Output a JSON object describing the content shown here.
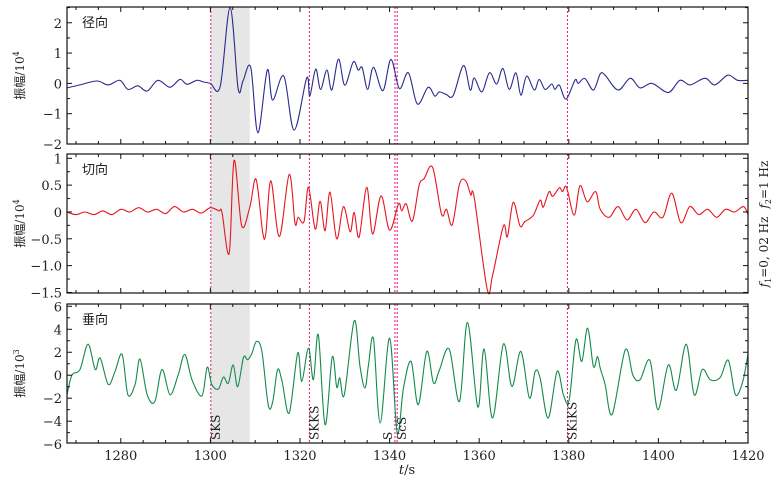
{
  "chart_data": {
    "type": "line",
    "xlabel_italic": "t",
    "xlabel_unit": "/s",
    "xlim": [
      1268,
      1420
    ],
    "x_ticks": [
      1280,
      1300,
      1320,
      1340,
      1360,
      1380,
      1400,
      1420
    ],
    "x_tick_labels": [
      "1280",
      "1300",
      "1320",
      "1340",
      "1360",
      "1380",
      "1400",
      "1420"
    ],
    "x_minor_step": 5,
    "filter_annotation": {
      "f1_label": "f",
      "f1_sub": "1",
      "f1_value": "=0, 02 Hz",
      "f2_label": "f",
      "f2_sub": "2",
      "f2_value": "=1 Hz"
    },
    "shaded_window": [
      1300.1,
      1308.8
    ],
    "phases": [
      {
        "name": "SKS",
        "t": 1300.1
      },
      {
        "name": "SKKS",
        "t": 1322.1
      },
      {
        "name": "S",
        "t": 1341.2
      },
      {
        "name": "ScS",
        "t": 1341.7
      },
      {
        "name": "SKiKS",
        "t": 1379.7
      }
    ],
    "panels": [
      {
        "title": "径向",
        "ylabel": "振幅/10",
        "ylabel_exp": "4",
        "color": "#2a2a8e",
        "ylim": [
          -2.0,
          2.52
        ],
        "y_ticks": [
          -2,
          -1,
          0,
          1,
          2
        ],
        "y_tick_labels": [
          "−2",
          "−1",
          "0",
          "1",
          "2"
        ],
        "y_minor_step": 0.5,
        "series": [
          [
            1268,
            -0.15
          ],
          [
            1270.9,
            -0.05
          ],
          [
            1274.7,
            0.08
          ],
          [
            1277.2,
            -0.05
          ],
          [
            1279.8,
            0.1
          ],
          [
            1281.6,
            -0.2
          ],
          [
            1283.8,
            -0.08
          ],
          [
            1285.9,
            -0.25
          ],
          [
            1288.3,
            0.1
          ],
          [
            1291,
            -0.13
          ],
          [
            1293.2,
            0.13
          ],
          [
            1294.8,
            -0.03
          ],
          [
            1297,
            0.1
          ],
          [
            1298.4,
            0.05
          ],
          [
            1300,
            0
          ],
          [
            1302.2,
            -0.1
          ],
          [
            1304.4,
            2.5
          ],
          [
            1306.2,
            -0.17
          ],
          [
            1307.3,
            0.09
          ],
          [
            1309,
            0.53
          ],
          [
            1310.6,
            -1.63
          ],
          [
            1312.7,
            0.44
          ],
          [
            1313.9,
            -0.55
          ],
          [
            1316.4,
            0.24
          ],
          [
            1318.7,
            -1.54
          ],
          [
            1321.5,
            0.18
          ],
          [
            1322.2,
            -0.42
          ],
          [
            1323.5,
            0.47
          ],
          [
            1324.6,
            -0.2
          ],
          [
            1326,
            0.44
          ],
          [
            1327.1,
            -0.22
          ],
          [
            1328.6,
            0.8
          ],
          [
            1330,
            -0.06
          ],
          [
            1331.9,
            0.71
          ],
          [
            1333,
            0.44
          ],
          [
            1333.9,
            0.52
          ],
          [
            1335.1,
            -0.2
          ],
          [
            1336.4,
            0.53
          ],
          [
            1338.5,
            -0.24
          ],
          [
            1340.3,
            0.79
          ],
          [
            1342.2,
            -0.17
          ],
          [
            1344.2,
            0.35
          ],
          [
            1346.2,
            -0.68
          ],
          [
            1348.6,
            -0.13
          ],
          [
            1350.1,
            -0.42
          ],
          [
            1351.1,
            -0.28
          ],
          [
            1352.6,
            -0.36
          ],
          [
            1354.2,
            -0.4
          ],
          [
            1356.5,
            0.59
          ],
          [
            1358,
            -0.22
          ],
          [
            1358.9,
            0.18
          ],
          [
            1360.6,
            -0.28
          ],
          [
            1362.3,
            0.35
          ],
          [
            1363.9,
            -0.02
          ],
          [
            1365.3,
            0.49
          ],
          [
            1366.7,
            -0.2
          ],
          [
            1368.2,
            0.35
          ],
          [
            1369.3,
            -0.39
          ],
          [
            1370.6,
            0.24
          ],
          [
            1372.3,
            -0.22
          ],
          [
            1373.4,
            0.13
          ],
          [
            1374.7,
            -0.2
          ],
          [
            1376.2,
            -0.02
          ],
          [
            1376.9,
            -0.2
          ],
          [
            1377.9,
            -0.06
          ],
          [
            1379.4,
            -0.52
          ],
          [
            1381.4,
            0.11
          ],
          [
            1382.1,
            0
          ],
          [
            1383.6,
            0.16
          ],
          [
            1385.5,
            -0.22
          ],
          [
            1387,
            0.31
          ],
          [
            1388.1,
            0.27
          ],
          [
            1391,
            -0.22
          ],
          [
            1393.7,
            0.17
          ],
          [
            1395.9,
            -0.15
          ],
          [
            1398.6,
            0
          ],
          [
            1402.2,
            -0.3
          ],
          [
            1404.8,
            0.1
          ],
          [
            1407.1,
            -0.05
          ],
          [
            1410.4,
            0.17
          ],
          [
            1412.6,
            -0.05
          ],
          [
            1415.5,
            0.27
          ],
          [
            1417.7,
            0.1
          ],
          [
            1420,
            0.1
          ]
        ]
      },
      {
        "title": "切向",
        "ylabel": "振幅/10",
        "ylabel_exp": "4",
        "color": "#e8141e",
        "ylim": [
          -1.51,
          1.08
        ],
        "y_ticks": [
          -1.5,
          -1.0,
          -0.5,
          0,
          0.5,
          1
        ],
        "y_tick_labels": [
          "−1.5",
          "−1.0",
          "−0.5",
          "0",
          "0.5",
          "1"
        ],
        "y_minor_step": 0.25,
        "series": [
          [
            1268,
            0
          ],
          [
            1270,
            -0.05
          ],
          [
            1272,
            0
          ],
          [
            1274,
            -0.05
          ],
          [
            1276,
            0.02
          ],
          [
            1278,
            -0.05
          ],
          [
            1280,
            0.05
          ],
          [
            1282,
            0
          ],
          [
            1284,
            0.08
          ],
          [
            1286,
            0
          ],
          [
            1288,
            0.05
          ],
          [
            1290,
            -0.03
          ],
          [
            1292,
            0.1
          ],
          [
            1294,
            0
          ],
          [
            1296,
            0.05
          ],
          [
            1298,
            -0.02
          ],
          [
            1300,
            0.08
          ],
          [
            1301.9,
            0.02
          ],
          [
            1302.6,
            -0.01
          ],
          [
            1304.2,
            -0.77
          ],
          [
            1305.3,
            0.96
          ],
          [
            1307,
            -0.26
          ],
          [
            1308.8,
            0.09
          ],
          [
            1310.2,
            0.61
          ],
          [
            1311.7,
            -0.39
          ],
          [
            1312.4,
            -0.39
          ],
          [
            1313.5,
            0.58
          ],
          [
            1315.4,
            -0.46
          ],
          [
            1317.6,
            0.7
          ],
          [
            1318.9,
            -0.21
          ],
          [
            1319.6,
            -0.1
          ],
          [
            1320.9,
            -0.18
          ],
          [
            1321.9,
            0.46
          ],
          [
            1323.4,
            -0.32
          ],
          [
            1324.5,
            0.2
          ],
          [
            1325.6,
            -0.35
          ],
          [
            1326.7,
            0.37
          ],
          [
            1328.2,
            -0.5
          ],
          [
            1329.7,
            0.1
          ],
          [
            1331.2,
            -0.37
          ],
          [
            1332.1,
            -0.01
          ],
          [
            1333.2,
            -0.47
          ],
          [
            1334.9,
            0.46
          ],
          [
            1336.2,
            -0.41
          ],
          [
            1338.1,
            0.3
          ],
          [
            1340,
            -0.34
          ],
          [
            1342,
            0.15
          ],
          [
            1342.7,
            0.02
          ],
          [
            1343.7,
            0.15
          ],
          [
            1345.1,
            -0.17
          ],
          [
            1346.6,
            0.5
          ],
          [
            1347.7,
            0.62
          ],
          [
            1349.6,
            0.83
          ],
          [
            1351.6,
            -0.04
          ],
          [
            1352.7,
            0.05
          ],
          [
            1354,
            -0.24
          ],
          [
            1355.6,
            0.52
          ],
          [
            1357,
            0.58
          ],
          [
            1358.1,
            0.32
          ],
          [
            1358.9,
            0.26
          ],
          [
            1361.8,
            -1.44
          ],
          [
            1363,
            -1.18
          ],
          [
            1365.4,
            -0.26
          ],
          [
            1366.3,
            -0.46
          ],
          [
            1367.6,
            0.18
          ],
          [
            1369.1,
            -0.26
          ],
          [
            1370.2,
            -0.18
          ],
          [
            1372.1,
            -0.06
          ],
          [
            1373.6,
            0.22
          ],
          [
            1374.3,
            0.09
          ],
          [
            1375.6,
            0.38
          ],
          [
            1376.4,
            0.29
          ],
          [
            1377.9,
            0.45
          ],
          [
            1378.6,
            0.38
          ],
          [
            1379.5,
            0.46
          ],
          [
            1381.2,
            -0.06
          ],
          [
            1382.5,
            0.49
          ],
          [
            1384.1,
            0.19
          ],
          [
            1386,
            0.38
          ],
          [
            1387,
            0.05
          ],
          [
            1389,
            -0.1
          ],
          [
            1391,
            0.1
          ],
          [
            1393,
            -0.15
          ],
          [
            1395,
            0.05
          ],
          [
            1397,
            -0.2
          ],
          [
            1399,
            0
          ],
          [
            1401,
            -0.1
          ],
          [
            1403,
            0.35
          ],
          [
            1405,
            -0.2
          ],
          [
            1407,
            0.1
          ],
          [
            1409,
            -0.05
          ],
          [
            1411,
            0.05
          ],
          [
            1413,
            -0.1
          ],
          [
            1415,
            0.05
          ],
          [
            1417,
            0
          ],
          [
            1419,
            0.1
          ],
          [
            1420,
            -0.05
          ]
        ]
      },
      {
        "title": "垂向",
        "ylabel": "振幅/10",
        "ylabel_exp": "3",
        "color": "#138a4a",
        "ylim": [
          -5.9,
          6.2
        ],
        "y_ticks": [
          -6,
          -4,
          -2,
          0,
          2,
          4,
          6
        ],
        "y_tick_labels": [
          "−6",
          "−4",
          "−2",
          "0",
          "2",
          "4",
          "6"
        ],
        "y_minor_step": 1,
        "series": [
          [
            1268,
            -1.7
          ],
          [
            1269.1,
            0
          ],
          [
            1270.9,
            0.5
          ],
          [
            1272.7,
            2.7
          ],
          [
            1274.3,
            0.5
          ],
          [
            1275.4,
            1.5
          ],
          [
            1277.2,
            -0.8
          ],
          [
            1278.7,
            0.3
          ],
          [
            1280.3,
            1.8
          ],
          [
            1281.6,
            -1.7
          ],
          [
            1283.2,
            -0.8
          ],
          [
            1284.3,
            1.4
          ],
          [
            1285.9,
            -1.7
          ],
          [
            1287.6,
            -2.3
          ],
          [
            1289.2,
            0.5
          ],
          [
            1291,
            -1.7
          ],
          [
            1292.8,
            0
          ],
          [
            1294.3,
            1.8
          ],
          [
            1295.9,
            -0.4
          ],
          [
            1298.1,
            -1.8
          ],
          [
            1299.3,
            0.7
          ],
          [
            1300.3,
            -0.8
          ],
          [
            1301.8,
            -1.2
          ],
          [
            1302.9,
            -0.16
          ],
          [
            1304,
            -0.7
          ],
          [
            1305.1,
            0.9
          ],
          [
            1306.1,
            -1.0
          ],
          [
            1307.4,
            1.55
          ],
          [
            1308.3,
            1.35
          ],
          [
            1309.2,
            1.84
          ],
          [
            1310.3,
            2.94
          ],
          [
            1311.5,
            2.07
          ],
          [
            1312.9,
            -2.57
          ],
          [
            1313.9,
            -2.36
          ],
          [
            1315,
            0.48
          ],
          [
            1316,
            -0.54
          ],
          [
            1317.6,
            -3.29
          ],
          [
            1319.5,
            1.93
          ],
          [
            1320.4,
            -0.54
          ],
          [
            1321.9,
            2.37
          ],
          [
            1323,
            -0.39
          ],
          [
            1324.1,
            3.52
          ],
          [
            1325.6,
            -4.3
          ],
          [
            1327.2,
            1.58
          ],
          [
            1328.2,
            -1.03
          ],
          [
            1328.9,
            -0.24
          ],
          [
            1329.9,
            -1.7
          ],
          [
            1332.1,
            4.74
          ],
          [
            1333.4,
            0.77
          ],
          [
            1334.5,
            -1.11
          ],
          [
            1335.3,
            0.9
          ],
          [
            1336.4,
            3.15
          ],
          [
            1337.9,
            -4.16
          ],
          [
            1340,
            3.23
          ],
          [
            1341.7,
            -5.0
          ],
          [
            1343.1,
            -1.1
          ],
          [
            1344.8,
            1.2
          ],
          [
            1346.4,
            -2.57
          ],
          [
            1348.3,
            2.07
          ],
          [
            1349.8,
            -0.68
          ],
          [
            1351.1,
            0.42
          ],
          [
            1353.3,
            2.28
          ],
          [
            1355.6,
            -2.28
          ],
          [
            1357.4,
            4.6
          ],
          [
            1359.7,
            -2.77
          ],
          [
            1361.1,
            2.28
          ],
          [
            1363,
            -3.72
          ],
          [
            1365.4,
            2.71
          ],
          [
            1367.3,
            -0.97
          ],
          [
            1369.3,
            2.07
          ],
          [
            1371.2,
            -1.98
          ],
          [
            1372.5,
            0.33
          ],
          [
            1373.6,
            -0.24
          ],
          [
            1375.4,
            -3.72
          ],
          [
            1377.4,
            0.33
          ],
          [
            1378.8,
            -1.7
          ],
          [
            1380.1,
            -2.13
          ],
          [
            1381.6,
            3.09
          ],
          [
            1382.9,
            1.2
          ],
          [
            1384.2,
            4.1
          ],
          [
            1385.5,
            0.77
          ],
          [
            1386.4,
            1.63
          ],
          [
            1387,
            0.63
          ],
          [
            1388.1,
            -0.8
          ],
          [
            1389.7,
            -3.4
          ],
          [
            1392.6,
            2.2
          ],
          [
            1394.3,
            0
          ],
          [
            1395.9,
            -0.4
          ],
          [
            1398.1,
            1.3
          ],
          [
            1399.9,
            -3.0
          ],
          [
            1402.2,
            0.9
          ],
          [
            1404,
            -1.3
          ],
          [
            1406.2,
            2.7
          ],
          [
            1408,
            -1.7
          ],
          [
            1409.8,
            0.5
          ],
          [
            1411.6,
            -0.4
          ],
          [
            1413.8,
            -0.2
          ],
          [
            1415.6,
            1.3
          ],
          [
            1417.2,
            -1.7
          ],
          [
            1418.8,
            -0.6
          ],
          [
            1420,
            1.8
          ]
        ]
      }
    ]
  }
}
